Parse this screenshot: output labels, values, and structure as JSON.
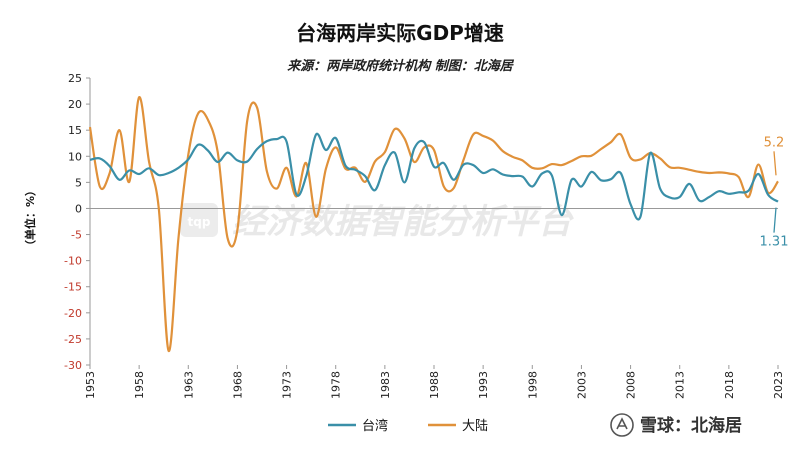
{
  "chart_data": {
    "type": "line",
    "title": "台海两岸实际GDP增速",
    "subtitle": "来源：两岸政府统计机构  制图：北海居",
    "ylabel": "（单位：%）",
    "ylim": [
      -30,
      25
    ],
    "yticks": [
      "25",
      "20",
      "15",
      "10",
      "5",
      "0",
      "-5",
      "-10",
      "-15",
      "-20",
      "-25",
      "-30"
    ],
    "xlim": [
      1953,
      2023
    ],
    "xticks": [
      "1953",
      "1958",
      "1963",
      "1968",
      "1973",
      "1978",
      "1983",
      "1988",
      "1993",
      "1998",
      "2003",
      "2008",
      "2013",
      "2018",
      "2023"
    ],
    "colors": {
      "taiwan": "#3a8fa8",
      "mainland": "#e0913a",
      "negative_tick": "#c0392b"
    },
    "legend_position": "bottom",
    "series": [
      {
        "name": "台湾",
        "key": "taiwan",
        "x": [
          1953,
          1954,
          1955,
          1956,
          1957,
          1958,
          1959,
          1960,
          1961,
          1962,
          1963,
          1964,
          1965,
          1966,
          1967,
          1968,
          1969,
          1970,
          1971,
          1972,
          1973,
          1974,
          1975,
          1976,
          1977,
          1978,
          1979,
          1980,
          1981,
          1982,
          1983,
          1984,
          1985,
          1986,
          1987,
          1988,
          1989,
          1990,
          1991,
          1992,
          1993,
          1994,
          1995,
          1996,
          1997,
          1998,
          1999,
          2000,
          2001,
          2002,
          2003,
          2004,
          2005,
          2006,
          2007,
          2008,
          2009,
          2010,
          2011,
          2012,
          2013,
          2014,
          2015,
          2016,
          2017,
          2018,
          2019,
          2020,
          2021,
          2022,
          2023
        ],
        "values": [
          9.3,
          9.6,
          8.1,
          5.5,
          7.3,
          6.6,
          7.7,
          6.4,
          6.8,
          7.8,
          9.4,
          12.2,
          11.1,
          8.9,
          10.7,
          9.2,
          9.0,
          11.4,
          12.9,
          13.3,
          12.8,
          2.7,
          6.2,
          14.2,
          11.2,
          13.5,
          8.2,
          7.4,
          6.2,
          3.5,
          8.3,
          10.7,
          5.0,
          11.5,
          12.7,
          8.0,
          8.7,
          5.5,
          8.4,
          8.3,
          6.8,
          7.5,
          6.5,
          6.2,
          6.1,
          4.2,
          6.7,
          6.3,
          -1.3,
          5.5,
          4.2,
          7.0,
          5.4,
          5.6,
          6.8,
          0.8,
          -1.6,
          10.6,
          3.8,
          2.1,
          2.2,
          4.7,
          1.5,
          2.2,
          3.3,
          2.8,
          3.1,
          3.4,
          6.6,
          2.6,
          1.31
        ]
      },
      {
        "name": "大陆",
        "key": "mainland",
        "x": [
          1953,
          1954,
          1955,
          1956,
          1957,
          1958,
          1959,
          1960,
          1961,
          1962,
          1963,
          1964,
          1965,
          1966,
          1967,
          1968,
          1969,
          1970,
          1971,
          1972,
          1973,
          1974,
          1975,
          1976,
          1977,
          1978,
          1979,
          1980,
          1981,
          1982,
          1983,
          1984,
          1985,
          1986,
          1987,
          1988,
          1989,
          1990,
          1991,
          1992,
          1993,
          1994,
          1995,
          1996,
          1997,
          1998,
          1999,
          2000,
          2001,
          2002,
          2003,
          2004,
          2005,
          2006,
          2007,
          2008,
          2009,
          2010,
          2011,
          2012,
          2013,
          2014,
          2015,
          2016,
          2017,
          2018,
          2019,
          2020,
          2021,
          2022,
          2023
        ],
        "values": [
          15.6,
          4.2,
          6.8,
          15.0,
          5.1,
          21.3,
          9.0,
          0.0,
          -27.3,
          -5.6,
          10.3,
          18.2,
          17.0,
          10.7,
          -5.7,
          -4.1,
          16.9,
          19.3,
          7.1,
          3.8,
          7.8,
          2.3,
          8.7,
          -1.6,
          7.6,
          11.7,
          7.6,
          7.8,
          5.1,
          9.0,
          10.8,
          15.2,
          13.4,
          8.9,
          11.7,
          11.2,
          4.2,
          3.9,
          9.3,
          14.2,
          13.9,
          13.0,
          11.0,
          9.9,
          9.2,
          7.8,
          7.7,
          8.5,
          8.3,
          9.1,
          10.0,
          10.1,
          11.4,
          12.7,
          14.2,
          9.7,
          9.4,
          10.6,
          9.6,
          7.9,
          7.8,
          7.4,
          7.0,
          6.8,
          6.9,
          6.7,
          6.0,
          2.2,
          8.4,
          3.0,
          5.2
        ]
      }
    ],
    "annotations": [
      {
        "text": "5.2",
        "series": "mainland",
        "x": 2023,
        "y": 5.2
      },
      {
        "text": "1.31",
        "series": "taiwan",
        "x": 2023,
        "y": 1.31
      }
    ],
    "grid": false
  },
  "watermark": {
    "logo_text": "tqp",
    "text": "经济数据智能分析平台"
  },
  "footer": {
    "icon": "xueqiu-snowball-icon",
    "text": "雪球：北海居"
  }
}
